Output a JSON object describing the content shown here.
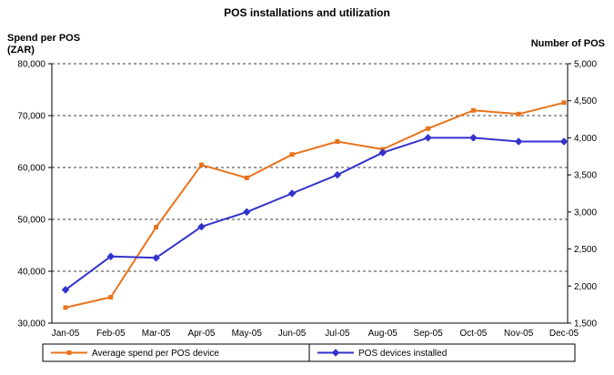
{
  "title": "POS installations and utilization",
  "axes": {
    "left_title_line1": "Spend per POS",
    "left_title_line2": "(ZAR)",
    "right_title": "Number of POS"
  },
  "chart_data": {
    "type": "line",
    "title": "POS installations and utilization",
    "categories": [
      "Jan-05",
      "Feb-05",
      "Mar-05",
      "Apr-05",
      "May-05",
      "Jun-05",
      "Jul-05",
      "Aug-05",
      "Sep-05",
      "Oct-05",
      "Nov-05",
      "Dec-05"
    ],
    "series": [
      {
        "name": "Average spend per POS device",
        "axis": "left",
        "color": "#E8731C",
        "marker": "square",
        "values": [
          33000,
          35000,
          48500,
          60500,
          58000,
          62500,
          65000,
          63500,
          67500,
          71000,
          70300,
          72500
        ]
      },
      {
        "name": "POS devices installed",
        "axis": "right",
        "color": "#3333CC",
        "marker": "diamond",
        "values": [
          1950,
          2400,
          2380,
          2800,
          3000,
          3250,
          3500,
          3800,
          4000,
          4000,
          3950,
          3950
        ]
      }
    ],
    "left_axis": {
      "label": "Spend per POS (ZAR)",
      "min": 30000,
      "max": 80000,
      "step": 10000
    },
    "right_axis": {
      "label": "Number of POS",
      "min": 1500,
      "max": 5000,
      "step": 500
    },
    "xlabel": "",
    "grid": "horizontal-dashed",
    "legend_position": "bottom"
  }
}
